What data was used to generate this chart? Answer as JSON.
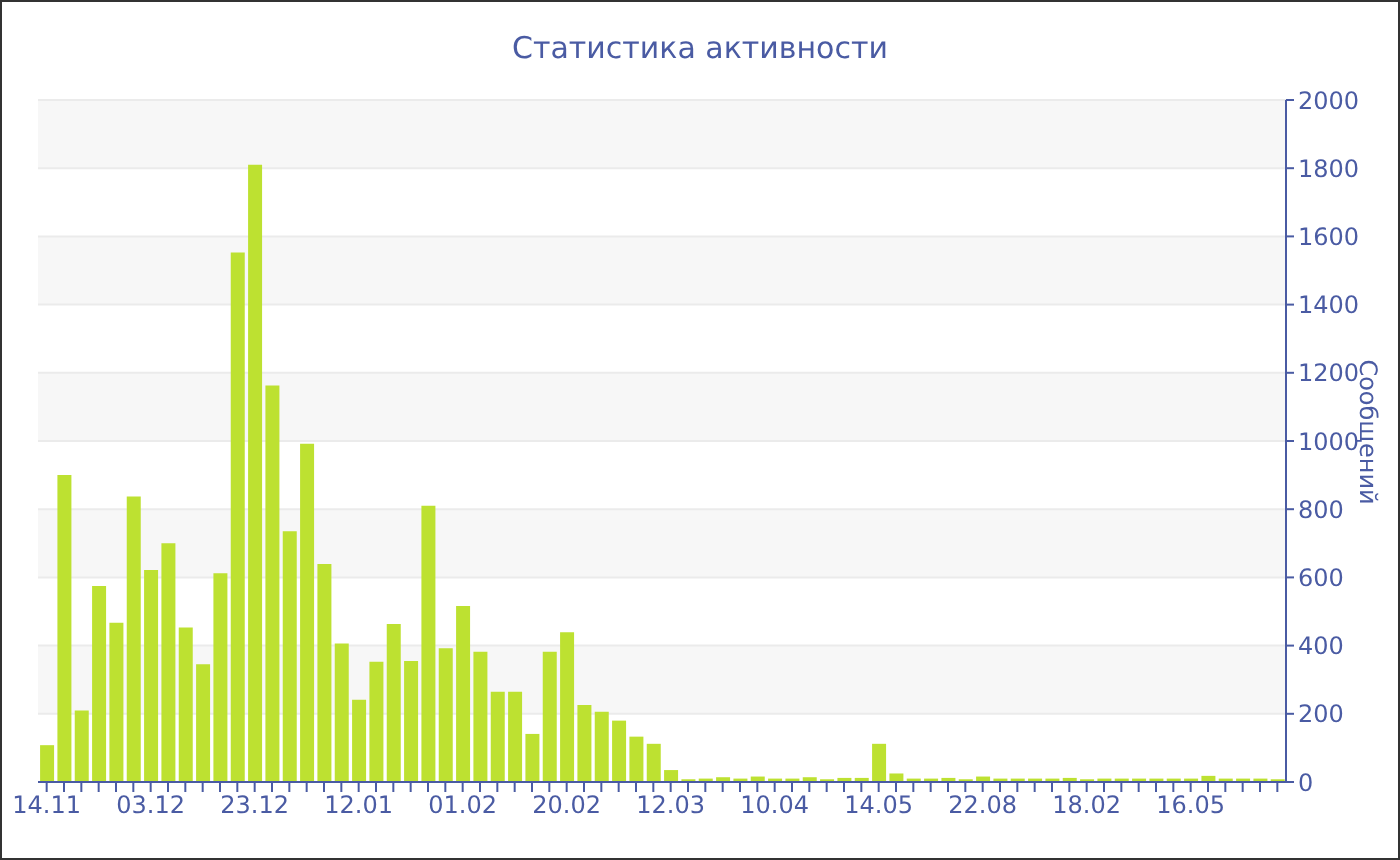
{
  "chart_data": {
    "type": "bar",
    "title": "Статистика активности",
    "ylabel": "Сообщений",
    "categories": [
      "14.11",
      null,
      null,
      null,
      null,
      null,
      "03.12",
      null,
      null,
      null,
      null,
      null,
      "23.12",
      null,
      null,
      null,
      null,
      null,
      "12.01",
      null,
      null,
      null,
      null,
      null,
      "01.02",
      null,
      null,
      null,
      null,
      null,
      "20.02",
      null,
      null,
      null,
      null,
      null,
      "12.03",
      null,
      null,
      null,
      null,
      null,
      "10.04",
      null,
      null,
      null,
      null,
      null,
      "14.05",
      null,
      null,
      null,
      null,
      null,
      "22.08",
      null,
      null,
      null,
      null,
      null,
      "18.02",
      null,
      null,
      null,
      null,
      null,
      "16.05",
      null,
      null,
      null,
      null,
      null
    ],
    "values": [
      108,
      900,
      210,
      575,
      467,
      837,
      622,
      700,
      453,
      345,
      612,
      1553,
      1810,
      1163,
      735,
      992,
      639,
      406,
      241,
      353,
      463,
      355,
      810,
      392,
      516,
      382,
      265,
      265,
      141,
      382,
      439,
      226,
      206,
      180,
      133,
      112,
      35,
      8,
      10,
      14,
      10,
      16,
      10,
      10,
      14,
      8,
      12,
      12,
      112,
      25,
      10,
      10,
      12,
      8,
      16,
      10,
      10,
      10,
      10,
      12,
      8,
      10,
      10,
      10,
      10,
      10,
      10,
      18,
      10,
      10,
      10,
      8
    ],
    "color": "#bde131",
    "ylim": [
      0,
      2000
    ],
    "yticks": [
      0,
      200,
      400,
      600,
      800,
      1000,
      1200,
      1400,
      1600,
      1800,
      2000
    ],
    "grid": "y",
    "legend": false
  }
}
